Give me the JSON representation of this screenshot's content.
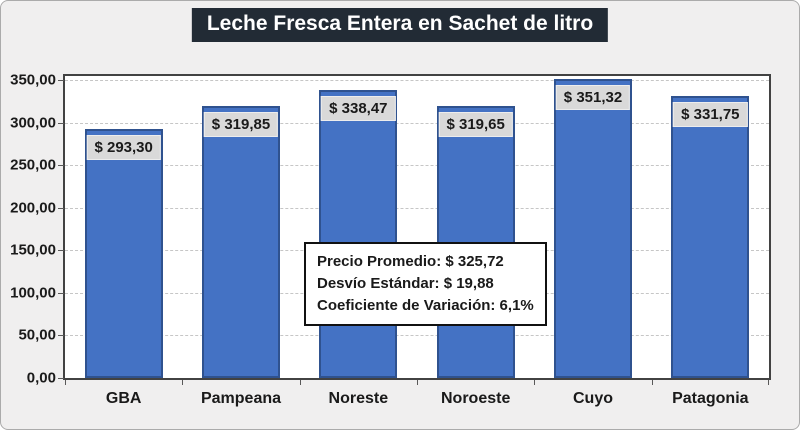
{
  "colors": {
    "bar_fill": "#4472C4",
    "bar_border": "#2F528F",
    "title_bg": "#222B35",
    "title_text": "#FFFFFF",
    "chart_bg": "#F0EFEF",
    "plot_bg": "#FFFFFF",
    "plot_border": "#424242",
    "gridline": "#C6C6C6",
    "data_label_bg": "#D9D9D9",
    "text": "#1A1A1A"
  },
  "chart_data": {
    "type": "bar",
    "title": "Leche Fresca Entera en Sachet de litro",
    "categories": [
      "GBA",
      "Pampeana",
      "Noreste",
      "Noroeste",
      "Cuyo",
      "Patagonia"
    ],
    "values": [
      293.3,
      319.85,
      338.47,
      319.65,
      351.32,
      331.75
    ],
    "value_labels": [
      "$ 293,30",
      "$ 319,85",
      "$ 338,47",
      "$ 319,65",
      "$ 351,32",
      "$ 331,75"
    ],
    "xlabel": "",
    "ylabel": "",
    "ylim": [
      0,
      350
    ],
    "yticks": {
      "values": [
        0,
        50,
        100,
        150,
        200,
        250,
        300,
        350
      ],
      "labels": [
        "0,00",
        "50,00",
        "100,00",
        "150,00",
        "200,00",
        "250,00",
        "300,00",
        "350,00"
      ]
    },
    "grid": "horizontal-dashed",
    "legend": "none",
    "data_label_position": "inside-end",
    "annotation": {
      "lines": [
        "Precio Promedio: $ 325,72",
        "Desvío Estándar: $ 19,88",
        "Coeficiente de Variación: 6,1%"
      ]
    }
  }
}
